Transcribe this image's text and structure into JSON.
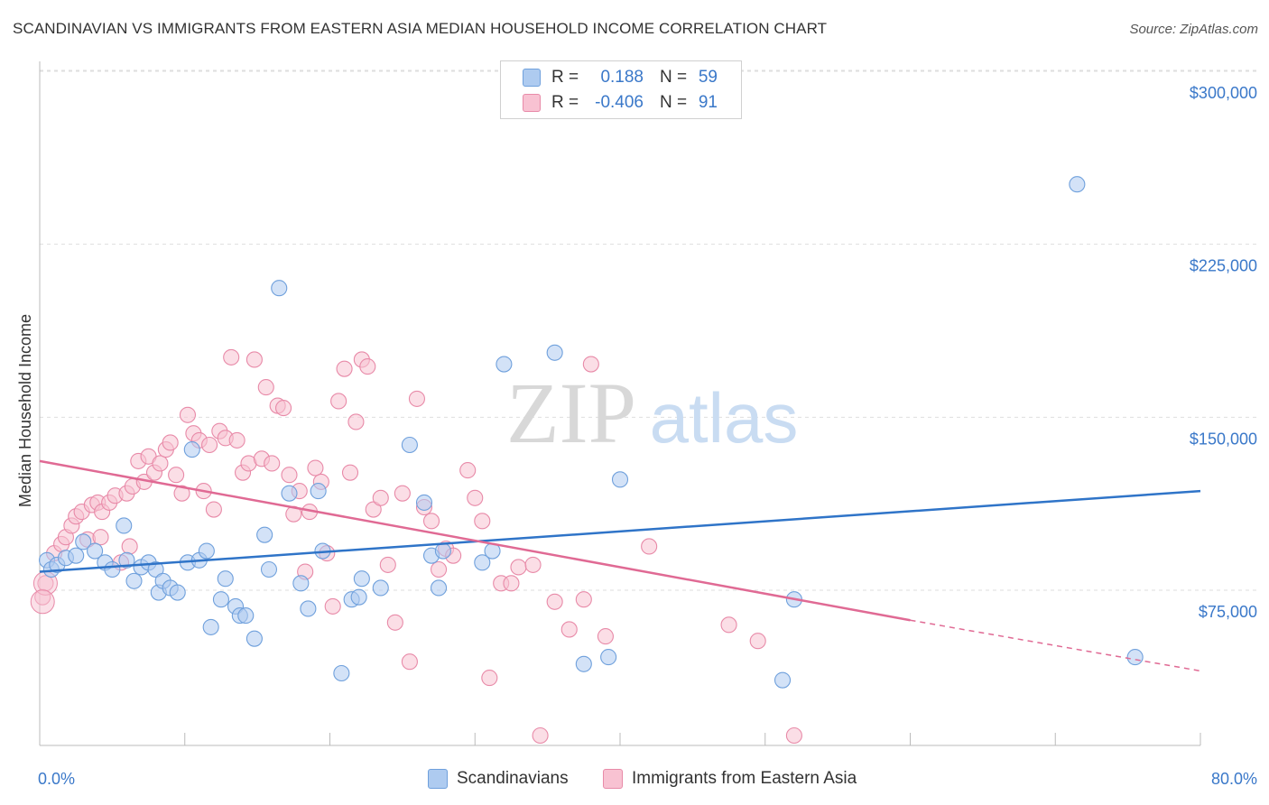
{
  "header": {
    "title": "SCANDINAVIAN VS IMMIGRANTS FROM EASTERN ASIA MEDIAN HOUSEHOLD INCOME CORRELATION CHART",
    "source": "Source: ZipAtlas.com"
  },
  "watermark": {
    "zip": "ZIP",
    "atlas": "atlas"
  },
  "legend": {
    "rows": [
      {
        "r_label": "R =",
        "r_value": "0.188",
        "n_label": "N =",
        "n_value": "59",
        "color": "#aecbf0",
        "border": "#6fa0dc"
      },
      {
        "r_label": "R =",
        "r_value": "-0.406",
        "n_label": "N =",
        "n_value": "91",
        "color": "#f8c2d2",
        "border": "#e88aa8"
      }
    ]
  },
  "bottom_legend": {
    "items": [
      {
        "label": "Scandinavians",
        "color": "#aecbf0",
        "border": "#6fa0dc"
      },
      {
        "label": "Immigrants from Eastern Asia",
        "color": "#f8c2d2",
        "border": "#e88aa8"
      }
    ]
  },
  "chart_data": {
    "type": "scatter",
    "title": "SCANDINAVIAN VS IMMIGRANTS FROM EASTERN ASIA MEDIAN HOUSEHOLD INCOME CORRELATION CHART",
    "xlabel": "",
    "ylabel": "Median Household Income",
    "xlim": [
      0,
      80
    ],
    "ylim": [
      0,
      315000
    ],
    "x_tick_labels": {
      "left": "0.0%",
      "right": "80.0%"
    },
    "y_ticks": [
      75000,
      150000,
      225000,
      300000
    ],
    "y_tick_labels": [
      "$75,000",
      "$150,000",
      "$225,000",
      "$300,000"
    ],
    "grid": true,
    "series": [
      {
        "name": "Scandinavians",
        "color": "#6fa0dc",
        "fill": "#aecbf0",
        "trend": {
          "x0": 0,
          "y0": 83000,
          "x1": 80,
          "y1": 118000,
          "color": "#2f74c8"
        },
        "points": [
          [
            0.5,
            88000
          ],
          [
            0.8,
            84000
          ],
          [
            1.2,
            86000
          ],
          [
            1.8,
            89000
          ],
          [
            2.5,
            90000
          ],
          [
            3.0,
            96000
          ],
          [
            3.8,
            92000
          ],
          [
            4.5,
            87000
          ],
          [
            5.0,
            84000
          ],
          [
            5.8,
            103000
          ],
          [
            6.0,
            88000
          ],
          [
            6.5,
            79000
          ],
          [
            7.0,
            85000
          ],
          [
            7.5,
            87000
          ],
          [
            8.0,
            84000
          ],
          [
            8.2,
            74000
          ],
          [
            8.5,
            79000
          ],
          [
            9.0,
            76000
          ],
          [
            9.5,
            74000
          ],
          [
            10.2,
            87000
          ],
          [
            10.5,
            136000
          ],
          [
            11.0,
            88000
          ],
          [
            11.5,
            92000
          ],
          [
            11.8,
            59000
          ],
          [
            12.5,
            71000
          ],
          [
            12.8,
            80000
          ],
          [
            13.5,
            68000
          ],
          [
            13.8,
            64000
          ],
          [
            14.2,
            64000
          ],
          [
            14.8,
            54000
          ],
          [
            15.5,
            99000
          ],
          [
            15.8,
            84000
          ],
          [
            16.5,
            206000
          ],
          [
            17.2,
            117000
          ],
          [
            18.0,
            78000
          ],
          [
            18.5,
            67000
          ],
          [
            19.2,
            118000
          ],
          [
            19.5,
            92000
          ],
          [
            20.8,
            39000
          ],
          [
            21.5,
            71000
          ],
          [
            22.0,
            72000
          ],
          [
            22.2,
            80000
          ],
          [
            23.5,
            76000
          ],
          [
            25.5,
            138000
          ],
          [
            26.5,
            113000
          ],
          [
            27.0,
            90000
          ],
          [
            27.5,
            76000
          ],
          [
            27.8,
            92000
          ],
          [
            30.5,
            87000
          ],
          [
            31.2,
            92000
          ],
          [
            32.0,
            173000
          ],
          [
            35.5,
            178000
          ],
          [
            37.5,
            43000
          ],
          [
            39.2,
            46000
          ],
          [
            40.0,
            123000
          ],
          [
            51.2,
            36000
          ],
          [
            52.0,
            71000
          ],
          [
            71.5,
            251000
          ],
          [
            75.5,
            46000
          ]
        ]
      },
      {
        "name": "Immigrants from Eastern Asia",
        "color": "#e88aa8",
        "fill": "#f8c2d2",
        "trend": {
          "x0": 0,
          "y0": 131000,
          "x1": 60,
          "y1": 62000,
          "dash_x1": 80,
          "dash_y1": 40000,
          "color": "#e06a94"
        },
        "points": [
          [
            0.2,
            72000
          ],
          [
            0.4,
            78000
          ],
          [
            1.0,
            91000
          ],
          [
            1.5,
            95000
          ],
          [
            1.8,
            98000
          ],
          [
            2.2,
            103000
          ],
          [
            2.5,
            107000
          ],
          [
            2.9,
            109000
          ],
          [
            3.3,
            97000
          ],
          [
            3.6,
            112000
          ],
          [
            4.0,
            113000
          ],
          [
            4.3,
            109000
          ],
          [
            4.8,
            113000
          ],
          [
            5.2,
            116000
          ],
          [
            5.6,
            87000
          ],
          [
            6.0,
            117000
          ],
          [
            6.4,
            120000
          ],
          [
            6.8,
            131000
          ],
          [
            7.2,
            122000
          ],
          [
            7.5,
            133000
          ],
          [
            7.9,
            126000
          ],
          [
            8.3,
            130000
          ],
          [
            8.7,
            136000
          ],
          [
            9.0,
            139000
          ],
          [
            9.4,
            125000
          ],
          [
            9.8,
            117000
          ],
          [
            10.2,
            151000
          ],
          [
            10.6,
            143000
          ],
          [
            11.0,
            140000
          ],
          [
            11.3,
            118000
          ],
          [
            11.7,
            138000
          ],
          [
            12.0,
            110000
          ],
          [
            12.4,
            144000
          ],
          [
            12.8,
            141000
          ],
          [
            13.2,
            176000
          ],
          [
            13.6,
            140000
          ],
          [
            14.0,
            126000
          ],
          [
            14.4,
            130000
          ],
          [
            14.8,
            175000
          ],
          [
            15.3,
            132000
          ],
          [
            15.6,
            163000
          ],
          [
            16.0,
            130000
          ],
          [
            16.4,
            155000
          ],
          [
            16.8,
            154000
          ],
          [
            17.2,
            125000
          ],
          [
            17.5,
            108000
          ],
          [
            17.9,
            118000
          ],
          [
            18.3,
            83000
          ],
          [
            18.6,
            109000
          ],
          [
            19.0,
            128000
          ],
          [
            19.4,
            122000
          ],
          [
            19.8,
            91000
          ],
          [
            20.2,
            68000
          ],
          [
            20.6,
            157000
          ],
          [
            21.0,
            171000
          ],
          [
            21.4,
            126000
          ],
          [
            21.8,
            148000
          ],
          [
            22.2,
            175000
          ],
          [
            22.6,
            172000
          ],
          [
            23.0,
            110000
          ],
          [
            23.5,
            115000
          ],
          [
            24.0,
            86000
          ],
          [
            24.5,
            61000
          ],
          [
            25.0,
            117000
          ],
          [
            25.5,
            44000
          ],
          [
            26.0,
            158000
          ],
          [
            26.5,
            111000
          ],
          [
            27.0,
            105000
          ],
          [
            27.5,
            84000
          ],
          [
            28.0,
            93000
          ],
          [
            28.5,
            90000
          ],
          [
            29.5,
            127000
          ],
          [
            30.0,
            115000
          ],
          [
            30.5,
            105000
          ],
          [
            31.0,
            37000
          ],
          [
            31.8,
            78000
          ],
          [
            32.5,
            78000
          ],
          [
            33.0,
            85000
          ],
          [
            34.0,
            86000
          ],
          [
            34.5,
            12000
          ],
          [
            35.5,
            70000
          ],
          [
            36.5,
            58000
          ],
          [
            37.5,
            71000
          ],
          [
            38.0,
            173000
          ],
          [
            39.0,
            55000
          ],
          [
            42.0,
            94000
          ],
          [
            47.5,
            60000
          ],
          [
            49.5,
            53000
          ],
          [
            52.0,
            12000
          ],
          [
            4.2,
            98000
          ],
          [
            6.2,
            94000
          ]
        ]
      }
    ]
  }
}
